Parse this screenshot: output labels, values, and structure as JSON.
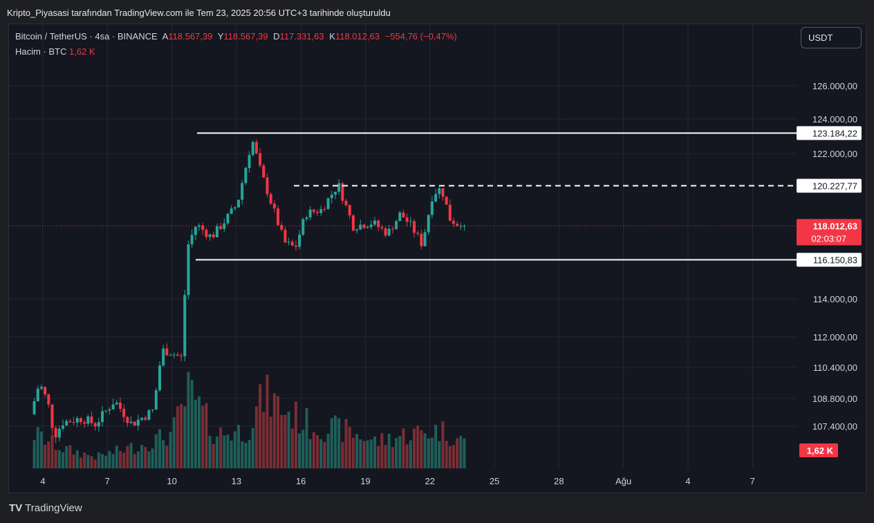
{
  "caption": "Kripto_Piyasasi tarafından TradingView.com ile Tem 23, 2025 20:56 UTC+3 tarihinde oluşturuldu",
  "currency": "USDT",
  "legend": {
    "symbol": "Bitcoin / TetherUS · 4sa · BINANCE",
    "open_label": "A",
    "open": "118.567,39",
    "high_label": "Y",
    "high": "118.567,39",
    "low_label": "D",
    "low": "117.331,63",
    "close_label": "K",
    "close": "118.012,63",
    "change": "−554,76 (−0,47%)"
  },
  "volume_legend": {
    "label": "Hacim · BTC",
    "value": "1,62 K"
  },
  "footer": {
    "brand": "TradingView",
    "mark": "TV"
  },
  "colors": {
    "up": "#26a69a",
    "down": "#f23645",
    "grid": "#232732",
    "text": "#d1d4dc",
    "bg": "#141720"
  },
  "chart_data": {
    "type": "candlestick",
    "price_axis_ticks": [
      "126.000,00",
      "124.000,00",
      "122.000,00",
      "110.400,00",
      "108.800,00",
      "107.400,00",
      "114.000,00",
      "112.000,00"
    ],
    "price_axis_values": [
      126000,
      124000,
      122000,
      110400,
      108800,
      107400,
      114000,
      112000
    ],
    "time_axis_ticks": [
      "4",
      "7",
      "10",
      "13",
      "16",
      "19",
      "22",
      "25",
      "28",
      "Ağu",
      "4",
      "7"
    ],
    "horizontal_levels": [
      {
        "label": "123.184,22",
        "value": 123184.22,
        "style": "solid"
      },
      {
        "label": "120.227,77",
        "value": 120227.77,
        "style": "dashed"
      },
      {
        "label": "116.150,83",
        "value": 116150.83,
        "style": "solid"
      }
    ],
    "last_price": {
      "label": "118.012,63",
      "countdown": "02:03:07",
      "value": 118012.63
    },
    "last_volume_label": "1,62 K",
    "segments": [
      {
        "time": 3.6,
        "price": 108000
      },
      {
        "time": 4.0,
        "price": 109600
      },
      {
        "time": 4.4,
        "price": 108600
      },
      {
        "time": 4.7,
        "price": 106900
      },
      {
        "time": 5.1,
        "price": 107600
      },
      {
        "time": 6.0,
        "price": 107800
      },
      {
        "time": 6.6,
        "price": 107500
      },
      {
        "time": 7.5,
        "price": 108700
      },
      {
        "time": 8.3,
        "price": 107500
      },
      {
        "time": 9.3,
        "price": 108200
      },
      {
        "time": 9.7,
        "price": 111300
      },
      {
        "time": 10.1,
        "price": 111200
      },
      {
        "time": 10.6,
        "price": 110900
      },
      {
        "time": 10.9,
        "price": 116900
      },
      {
        "time": 11.3,
        "price": 118100
      },
      {
        "time": 12.0,
        "price": 117400
      },
      {
        "time": 12.5,
        "price": 118100
      },
      {
        "time": 13.2,
        "price": 119200
      },
      {
        "time": 13.9,
        "price": 122800
      },
      {
        "time": 14.3,
        "price": 121000
      },
      {
        "time": 14.7,
        "price": 119600
      },
      {
        "time": 15.4,
        "price": 117100
      },
      {
        "time": 15.9,
        "price": 116800
      },
      {
        "time": 16.4,
        "price": 118700
      },
      {
        "time": 17.1,
        "price": 118900
      },
      {
        "time": 17.9,
        "price": 120300
      },
      {
        "time": 18.6,
        "price": 118000
      },
      {
        "time": 19.5,
        "price": 118200
      },
      {
        "time": 20.2,
        "price": 117600
      },
      {
        "time": 20.8,
        "price": 118700
      },
      {
        "time": 21.3,
        "price": 118000
      },
      {
        "time": 21.8,
        "price": 117000
      },
      {
        "time": 22.3,
        "price": 119800
      },
      {
        "time": 22.7,
        "price": 120100
      },
      {
        "time": 23.1,
        "price": 118400
      },
      {
        "time": 23.6,
        "price": 118000
      }
    ],
    "volume_anchors": [
      {
        "time": 3.6,
        "volume": 0.45
      },
      {
        "time": 5.0,
        "volume": 0.25
      },
      {
        "time": 6.5,
        "volume": 0.15
      },
      {
        "time": 8.5,
        "volume": 0.3
      },
      {
        "time": 10.0,
        "volume": 0.45
      },
      {
        "time": 10.8,
        "volume": 1.0
      },
      {
        "time": 12.0,
        "volume": 0.45
      },
      {
        "time": 13.5,
        "volume": 0.5
      },
      {
        "time": 14.3,
        "volume": 0.95
      },
      {
        "time": 15.3,
        "volume": 0.75
      },
      {
        "time": 16.5,
        "volume": 0.55
      },
      {
        "time": 18.0,
        "volume": 0.5
      },
      {
        "time": 19.5,
        "volume": 0.35
      },
      {
        "time": 21.0,
        "volume": 0.45
      },
      {
        "time": 22.5,
        "volume": 0.5
      },
      {
        "time": 23.6,
        "volume": 0.35
      }
    ],
    "volume_scale_ticks": [
      "1,62 K"
    ],
    "grid": true
  }
}
